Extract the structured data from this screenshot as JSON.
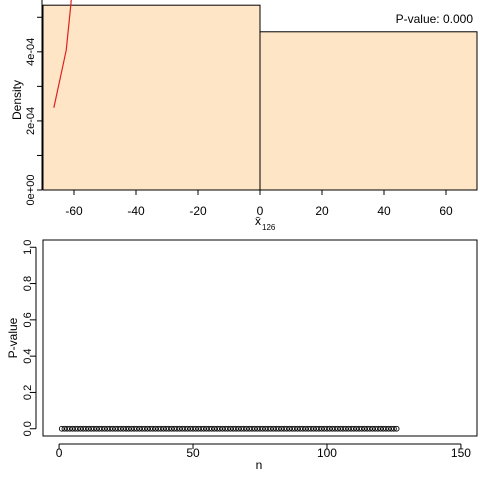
{
  "chart_data": [
    {
      "type": "bar",
      "title": "",
      "annotation": "P-value: 0.000",
      "xlabel": "x̄",
      "xlabel_subscript": "126",
      "ylabel": "Density",
      "xlim": [
        -70,
        70
      ],
      "ylim": [
        0,
        0.00055
      ],
      "xticks": [
        -60,
        -40,
        -20,
        0,
        20,
        40,
        60
      ],
      "xtick_labels": [
        "-60",
        "-40",
        "-20",
        "0",
        "20",
        "40",
        "60"
      ],
      "yticks": [
        0,
        0.0001,
        0.0002,
        0.0003,
        0.0004,
        0.0005
      ],
      "ytick_labels": [
        "0e+00",
        "",
        "2e-04",
        "",
        "4e-04",
        ""
      ],
      "bins": [
        {
          "x0": -70,
          "x1": 0,
          "density": 0.000535
        },
        {
          "x0": 0,
          "x1": 70,
          "density": 0.000458
        }
      ],
      "bar_fill": "#FDE5C6",
      "curve_color": "#E02020",
      "curve": {
        "x": [
          -66.5,
          -62.5,
          -61.2,
          -60.6
        ],
        "y": [
          0.000238,
          0.000405,
          0.00052,
          0.000578
        ]
      },
      "grid": false
    },
    {
      "type": "scatter",
      "title": "",
      "xlabel": "n",
      "ylabel": "P-value",
      "xlim": [
        -6,
        156
      ],
      "ylim": [
        -0.04,
        1.04
      ],
      "xticks": [
        0,
        50,
        100,
        150
      ],
      "xtick_labels": [
        "0",
        "50",
        "100",
        "150"
      ],
      "yticks": [
        0,
        0.2,
        0.4,
        0.6,
        0.8,
        1.0
      ],
      "ytick_labels": [
        "0.0",
        "0.2",
        "0.4",
        "0.6",
        "0.8",
        "1.0"
      ],
      "point_range": {
        "start": 1,
        "end": 126
      },
      "point_value": 0,
      "marker": "open-circle",
      "grid": false
    }
  ]
}
